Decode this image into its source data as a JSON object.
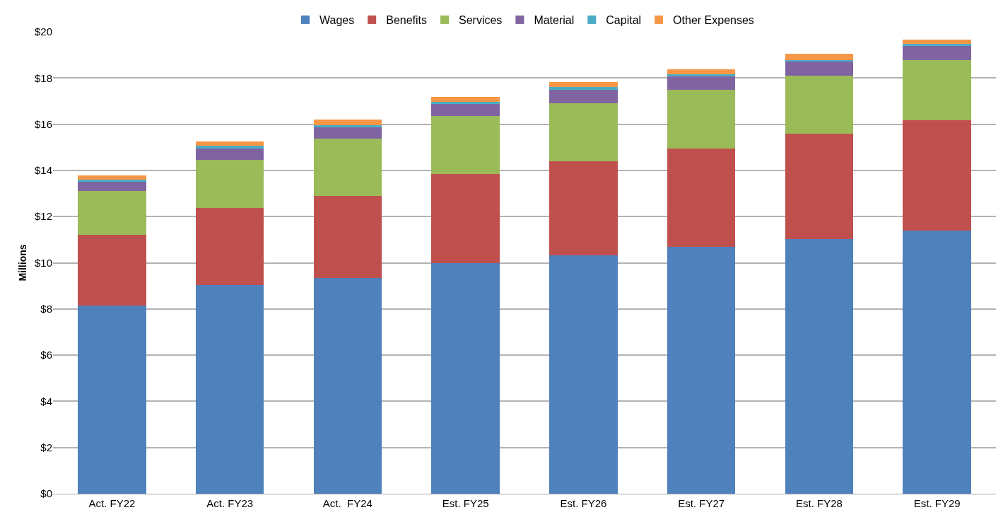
{
  "chart_data": {
    "type": "bar",
    "stacked": true,
    "ylabel": "Millions",
    "categories": [
      "Act. FY22",
      "Act. FY23",
      "Act.  FY24",
      "Est. FY25",
      "Est. FY26",
      "Est. FY27",
      "Est. FY28",
      "Est. FY29"
    ],
    "series": [
      {
        "name": "Wages",
        "color": "#4f81bd",
        "values": [
          8.15,
          9.05,
          9.35,
          9.97,
          10.31,
          10.68,
          11.02,
          11.38
        ]
      },
      {
        "name": "Benefits",
        "color": "#c0504d",
        "values": [
          3.05,
          3.32,
          3.55,
          3.88,
          4.09,
          4.27,
          4.58,
          4.8
        ]
      },
      {
        "name": "Services",
        "color": "#9bbb59",
        "values": [
          1.9,
          2.09,
          2.48,
          2.52,
          2.52,
          2.53,
          2.51,
          2.6
        ]
      },
      {
        "name": "Material",
        "color": "#8064a2",
        "values": [
          0.42,
          0.49,
          0.5,
          0.5,
          0.56,
          0.59,
          0.62,
          0.62
        ]
      },
      {
        "name": "Capital",
        "color": "#4bacc6",
        "values": [
          0.08,
          0.13,
          0.09,
          0.1,
          0.12,
          0.09,
          0.05,
          0.07
        ]
      },
      {
        "name": "Other Expenses",
        "color": "#f79646",
        "values": [
          0.17,
          0.18,
          0.23,
          0.22,
          0.22,
          0.21,
          0.27,
          0.2
        ]
      }
    ],
    "ylim": [
      0,
      20
    ],
    "yticks": [
      {
        "value": 0,
        "label": "$0"
      },
      {
        "value": 2,
        "label": "$2"
      },
      {
        "value": 4,
        "label": "$4"
      },
      {
        "value": 6,
        "label": "$6"
      },
      {
        "value": 8,
        "label": "$8"
      },
      {
        "value": 10,
        "label": "$10"
      },
      {
        "value": 12,
        "label": "$12"
      },
      {
        "value": 14,
        "label": "$14"
      },
      {
        "value": 16,
        "label": "$16"
      },
      {
        "value": 18,
        "label": "$18"
      },
      {
        "value": 20,
        "label": "$20"
      }
    ],
    "grid": "y",
    "legend": "top"
  }
}
